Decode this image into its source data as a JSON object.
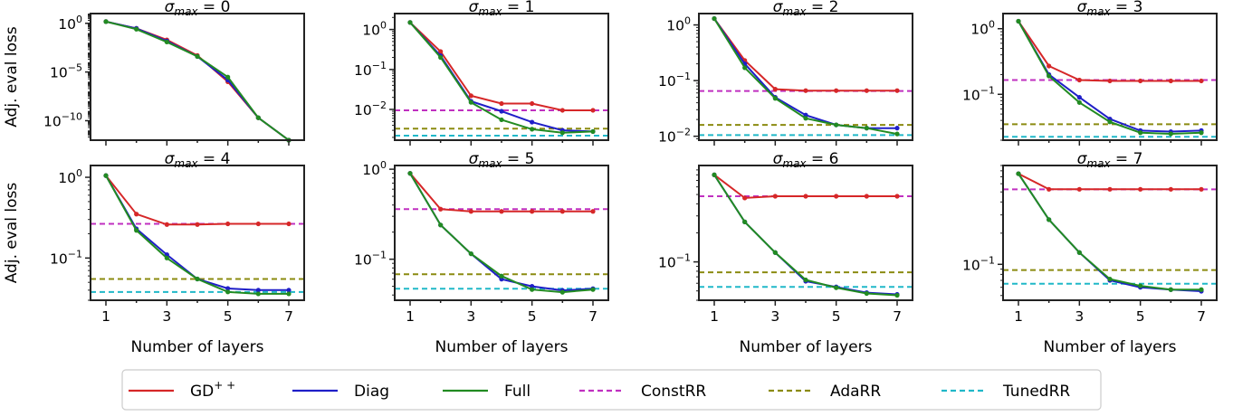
{
  "chart_data": {
    "type": "line",
    "layout": "2x4 grid of log-scale line plots",
    "panel_title_prefix": "σ",
    "panel_title_subscript": "max",
    "xlabel": "Number of layers",
    "ylabel": "Adj. eval loss",
    "x": [
      1,
      2,
      3,
      4,
      5,
      6,
      7
    ],
    "xticks": [
      1,
      3,
      5,
      7
    ],
    "yscale": "log",
    "legend": {
      "placement": "bottom-center",
      "entries": [
        {
          "key": "gdpp",
          "label": "GD",
          "label_superscript": "+ +",
          "color": "#d62728",
          "style": "solid"
        },
        {
          "key": "diag",
          "label": "Diag",
          "color": "#1f1fc8",
          "style": "solid"
        },
        {
          "key": "full",
          "label": "Full",
          "color": "#228b22",
          "style": "solid"
        },
        {
          "key": "const",
          "label": "ConstRR",
          "color": "#c030c0",
          "style": "dashed"
        },
        {
          "key": "ada",
          "label": "AdaRR",
          "color": "#8b8b10",
          "style": "dashed"
        },
        {
          "key": "tuned",
          "label": "TunedRR",
          "color": "#20b8c8",
          "style": "dashed"
        }
      ]
    },
    "panels": [
      {
        "sigma": "0",
        "ylim": [
          1e-12,
          10
        ],
        "yticks": [
          1,
          1e-05,
          1e-10
        ],
        "ytick_labels": [
          {
            "b": "10",
            "e": "0"
          },
          {
            "b": "10",
            "e": "−5"
          },
          {
            "b": "10",
            "e": "−10"
          }
        ],
        "series": {
          "gdpp": [
            1.5,
            0.3,
            0.02,
            0.0005,
            1e-06,
            2e-10,
            1e-12
          ],
          "diag": [
            1.5,
            0.3,
            0.015,
            0.0004,
            1.5e-06,
            2e-10,
            1e-12
          ],
          "full": [
            1.5,
            0.25,
            0.012,
            0.0004,
            3e-06,
            2e-10,
            1e-12
          ]
        },
        "baselines": {}
      },
      {
        "sigma": "1",
        "ylim": [
          0.0017,
          2.5
        ],
        "yticks": [
          1,
          0.1,
          0.01
        ],
        "ytick_labels": [
          {
            "b": "10",
            "e": "0"
          },
          {
            "b": "10",
            "e": "−1"
          },
          {
            "b": "10",
            "e": "−2"
          }
        ],
        "series": {
          "gdpp": [
            1.5,
            0.28,
            0.022,
            0.014,
            0.014,
            0.0095,
            0.0095
          ],
          "diag": [
            1.5,
            0.22,
            0.016,
            0.009,
            0.0048,
            0.003,
            0.0028
          ],
          "full": [
            1.5,
            0.2,
            0.015,
            0.0055,
            0.0032,
            0.0026,
            0.0028
          ]
        },
        "baselines": {
          "const": 0.0095,
          "ada": 0.0033,
          "tuned": 0.0022
        }
      },
      {
        "sigma": "2",
        "ylim": [
          0.0085,
          1.6
        ],
        "yticks": [
          1,
          0.1,
          0.01
        ],
        "ytick_labels": [
          {
            "b": "10",
            "e": "0"
          },
          {
            "b": "10",
            "e": "−1"
          },
          {
            "b": "10",
            "e": "−2"
          }
        ],
        "series": {
          "gdpp": [
            1.3,
            0.23,
            0.07,
            0.066,
            0.066,
            0.066,
            0.066
          ],
          "diag": [
            1.3,
            0.2,
            0.05,
            0.024,
            0.016,
            0.014,
            0.014
          ],
          "full": [
            1.3,
            0.17,
            0.048,
            0.021,
            0.016,
            0.014,
            0.011
          ]
        },
        "baselines": {
          "const": 0.065,
          "ada": 0.016,
          "tuned": 0.0105
        }
      },
      {
        "sigma": "3",
        "ylim": [
          0.02,
          1.7
        ],
        "yticks": [
          1,
          0.1
        ],
        "ytick_labels": [
          {
            "b": "10",
            "e": "0"
          },
          {
            "b": "10",
            "e": "−1"
          }
        ],
        "series": {
          "gdpp": [
            1.3,
            0.27,
            0.165,
            0.16,
            0.16,
            0.16,
            0.16
          ],
          "diag": [
            1.3,
            0.2,
            0.09,
            0.042,
            0.028,
            0.027,
            0.028
          ],
          "full": [
            1.3,
            0.19,
            0.075,
            0.038,
            0.026,
            0.025,
            0.026
          ]
        },
        "baselines": {
          "const": 0.165,
          "ada": 0.035,
          "tuned": 0.0225
        }
      },
      {
        "sigma": "4",
        "ylim": [
          0.03,
          1.4
        ],
        "yticks": [
          1,
          0.1
        ],
        "ytick_labels": [
          {
            "b": "10",
            "e": "0"
          },
          {
            "b": "10",
            "e": "−1"
          }
        ],
        "series": {
          "gdpp": [
            1.05,
            0.35,
            0.26,
            0.26,
            0.265,
            0.265,
            0.265
          ],
          "diag": [
            1.05,
            0.23,
            0.11,
            0.055,
            0.042,
            0.04,
            0.04
          ],
          "full": [
            1.05,
            0.22,
            0.1,
            0.055,
            0.038,
            0.036,
            0.036
          ]
        },
        "baselines": {
          "const": 0.265,
          "ada": 0.055,
          "tuned": 0.038
        }
      },
      {
        "sigma": "5",
        "ylim": [
          0.035,
          1.1
        ],
        "yticks": [
          1,
          0.1
        ],
        "ytick_labels": [
          {
            "b": "10",
            "e": "0"
          },
          {
            "b": "10",
            "e": "−1"
          }
        ],
        "series": {
          "gdpp": [
            0.9,
            0.36,
            0.34,
            0.34,
            0.34,
            0.34,
            0.34
          ],
          "diag": [
            0.9,
            0.24,
            0.115,
            0.06,
            0.05,
            0.045,
            0.047
          ],
          "full": [
            0.9,
            0.24,
            0.115,
            0.065,
            0.046,
            0.043,
            0.046
          ]
        },
        "baselines": {
          "const": 0.36,
          "ada": 0.068,
          "tuned": 0.047
        }
      },
      {
        "sigma": "6",
        "ylim": [
          0.04,
          1.0
        ],
        "yticks": [
          0.1
        ],
        "ytick_labels": [
          {
            "b": "10",
            "e": "−1"
          }
        ],
        "series": {
          "gdpp": [
            0.8,
            0.46,
            0.48,
            0.48,
            0.48,
            0.48,
            0.48
          ],
          "diag": [
            0.8,
            0.26,
            0.125,
            0.063,
            0.055,
            0.048,
            0.046
          ],
          "full": [
            0.8,
            0.26,
            0.125,
            0.065,
            0.054,
            0.047,
            0.045
          ]
        },
        "baselines": {
          "const": 0.48,
          "ada": 0.078,
          "tuned": 0.055
        }
      },
      {
        "sigma": "7",
        "ylim": [
          0.045,
          0.9
        ],
        "yticks": [
          0.1
        ],
        "ytick_labels": [
          {
            "b": "10",
            "e": "−1"
          }
        ],
        "series": {
          "gdpp": [
            0.75,
            0.53,
            0.53,
            0.53,
            0.53,
            0.53,
            0.53
          ],
          "diag": [
            0.75,
            0.27,
            0.13,
            0.07,
            0.06,
            0.057,
            0.055
          ],
          "full": [
            0.75,
            0.27,
            0.13,
            0.072,
            0.062,
            0.057,
            0.057
          ]
        },
        "baselines": {
          "const": 0.53,
          "ada": 0.088,
          "tuned": 0.065
        }
      }
    ]
  }
}
